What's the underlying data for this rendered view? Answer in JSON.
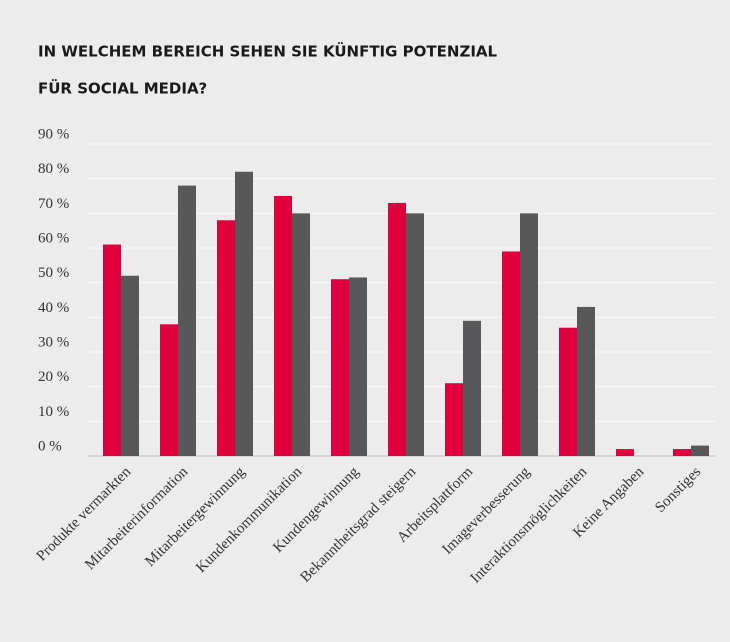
{
  "chart_data": {
    "type": "bar",
    "title": [
      "IN WELCHEM BEREICH SEHEN SIE KÜNFTIG POTENZIAL",
      "FÜR SOCIAL MEDIA?"
    ],
    "categories": [
      "Produkte vermarkten",
      "Mitarbeiterinformation",
      "Mitarbeitergewinnung",
      "Kundenkommunikation",
      "Kundengewinnung",
      "Bekanntheitsgrad steigern",
      "Arbeitsplattform",
      "Imageverbesserung",
      "Interaktionsmöglichkeiten",
      "Keine Angaben",
      "Sonstiges"
    ],
    "series": [
      {
        "color": "#e0003c",
        "values": [
          61,
          38,
          68,
          75,
          51,
          73,
          21,
          59,
          37,
          2,
          2
        ]
      },
      {
        "color": "#58585a",
        "values": [
          52,
          78,
          82,
          70,
          51.5,
          70,
          39,
          70,
          43,
          0,
          3
        ]
      }
    ],
    "ylim": [
      0,
      90
    ],
    "yticks": [
      {
        "value": 0,
        "label": "0 %"
      },
      {
        "value": 10,
        "label": "10 %"
      },
      {
        "value": 20,
        "label": "20 %"
      },
      {
        "value": 30,
        "label": "30 %"
      },
      {
        "value": 40,
        "label": "40 %"
      },
      {
        "value": 50,
        "label": "50 %"
      },
      {
        "value": 60,
        "label": "60 %"
      },
      {
        "value": 70,
        "label": "70 %"
      },
      {
        "value": 80,
        "label": "80 %"
      },
      {
        "value": 90,
        "label": "90 %"
      }
    ],
    "grid": true
  }
}
